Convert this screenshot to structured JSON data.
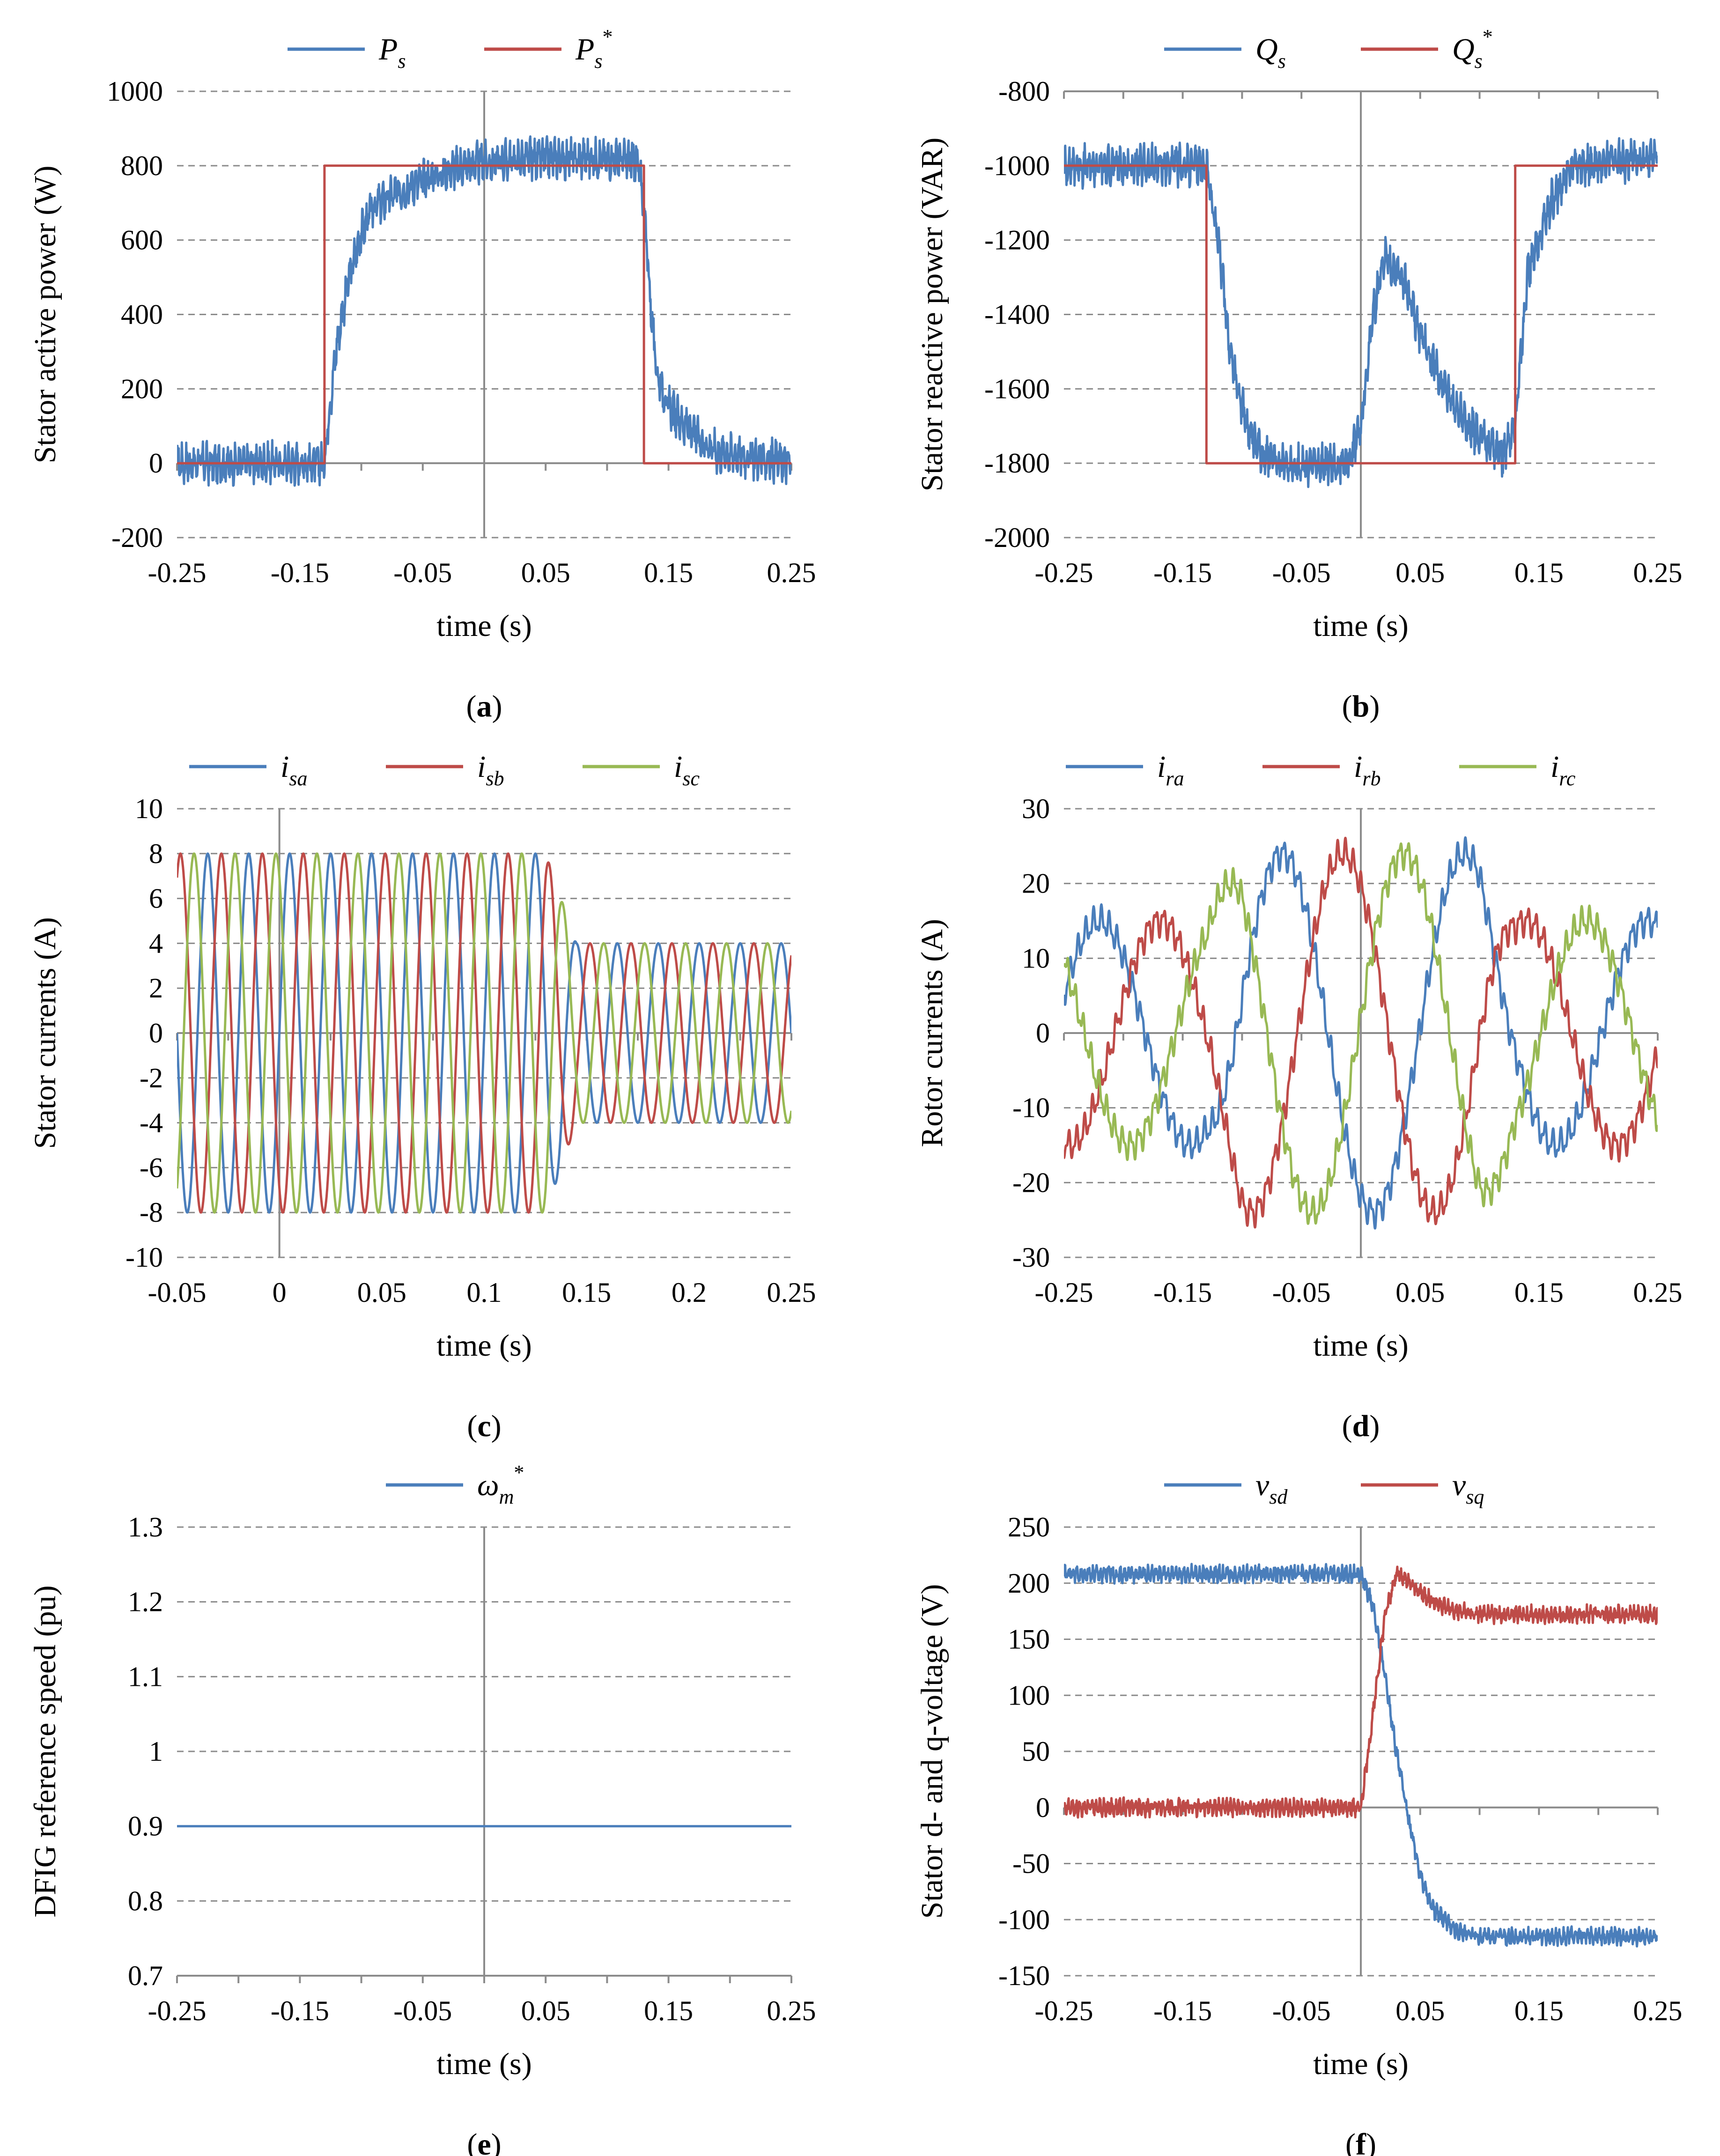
{
  "chart_data": [
    {
      "id": "a",
      "type": "line",
      "caption": "a",
      "ylabel": "Stator active power (W)",
      "xlabel": "time (s)",
      "xlim": [
        -0.25,
        0.25
      ],
      "ylim": [
        -200,
        1000
      ],
      "xticks": [
        -0.25,
        -0.15,
        -0.05,
        0.05,
        0.15,
        0.25
      ],
      "xtick_labels": [
        "-0.25",
        "-0.15",
        "-0.05",
        "0.05",
        "0.15",
        "0.25"
      ],
      "yticks": [
        -200,
        0,
        200,
        400,
        600,
        800,
        1000
      ],
      "ytick_labels": [
        "-200",
        "0",
        "200",
        "400",
        "600",
        "800",
        "1000"
      ],
      "zero_axis_x": 0,
      "zero_axis_y": 0,
      "series": [
        {
          "name": "P",
          "sub": "s",
          "sup": "",
          "color": "#4a7ebb",
          "noisy": true,
          "noise": 55,
          "x": [
            -0.25,
            -0.13,
            -0.128,
            -0.12,
            -0.11,
            -0.1,
            -0.09,
            -0.07,
            -0.05,
            -0.03,
            0.0,
            0.05,
            0.1,
            0.125,
            0.13,
            0.135,
            0.14,
            0.15,
            0.17,
            0.19,
            0.25
          ],
          "y": [
            0,
            0,
            80,
            320,
            500,
            620,
            690,
            730,
            760,
            790,
            810,
            820,
            820,
            810,
            700,
            450,
            250,
            150,
            80,
            30,
            0
          ]
        },
        {
          "name": "P",
          "sub": "s",
          "sup": "*",
          "color": "#be4b48",
          "noisy": false,
          "x": [
            -0.25,
            -0.13,
            -0.13,
            0.13,
            0.13,
            0.25
          ],
          "y": [
            0,
            0,
            800,
            800,
            0,
            0
          ]
        }
      ]
    },
    {
      "id": "b",
      "type": "line",
      "caption": "b",
      "ylabel": "Stator reactive power (VAR)",
      "xlabel": "time (s)",
      "xlim": [
        -0.25,
        0.25
      ],
      "ylim": [
        -2000,
        -800
      ],
      "xticks": [
        -0.25,
        -0.15,
        -0.05,
        0.05,
        0.15,
        0.25
      ],
      "xtick_labels": [
        "-0.25",
        "-0.15",
        "-0.05",
        "0.05",
        "0.15",
        "0.25"
      ],
      "yticks": [
        -2000,
        -1800,
        -1600,
        -1400,
        -1200,
        -1000,
        -800
      ],
      "ytick_labels": [
        "-2000",
        "-1800",
        "-1600",
        "-1400",
        "-1200",
        "-1000",
        "-800"
      ],
      "zero_axis_x": 0,
      "zero_axis_y": -800,
      "series": [
        {
          "name": "Q",
          "sub": "s",
          "sup": "",
          "color": "#4a7ebb",
          "noisy": true,
          "noise": 55,
          "x": [
            -0.25,
            -0.13,
            -0.12,
            -0.11,
            -0.1,
            -0.09,
            -0.07,
            -0.04,
            -0.01,
            0.0,
            0.01,
            0.02,
            0.035,
            0.05,
            0.07,
            0.09,
            0.12,
            0.13,
            0.14,
            0.16,
            0.18,
            0.25
          ],
          "y": [
            -1000,
            -1000,
            -1200,
            -1500,
            -1650,
            -1750,
            -1800,
            -1810,
            -1800,
            -1700,
            -1400,
            -1250,
            -1300,
            -1450,
            -1600,
            -1700,
            -1780,
            -1700,
            -1300,
            -1100,
            -1000,
            -980
          ]
        },
        {
          "name": "Q",
          "sub": "s",
          "sup": "*",
          "color": "#be4b48",
          "noisy": false,
          "x": [
            -0.25,
            -0.13,
            -0.13,
            0.13,
            0.13,
            0.25
          ],
          "y": [
            -1000,
            -1000,
            -1800,
            -1800,
            -1000,
            -1000
          ]
        }
      ]
    },
    {
      "id": "c",
      "type": "line",
      "caption": "c",
      "ylabel": "Stator currents (A)",
      "xlabel": "time (s)",
      "xlim": [
        -0.05,
        0.25
      ],
      "ylim": [
        -10,
        10
      ],
      "xticks": [
        -0.05,
        0,
        0.05,
        0.1,
        0.15,
        0.2,
        0.25
      ],
      "xtick_labels": [
        "-0.05",
        "0",
        "0.05",
        "0.1",
        "0.15",
        "0.2",
        "0.25"
      ],
      "yticks": [
        -10,
        -8,
        -6,
        -4,
        -2,
        0,
        2,
        4,
        6,
        8,
        10
      ],
      "ytick_labels": [
        "-10",
        "-8",
        "-6",
        "-4",
        "-2",
        "0",
        "2",
        "4",
        "6",
        "8",
        "10"
      ],
      "zero_axis_x": 0,
      "zero_axis_y": 0,
      "waveform": {
        "kind": "three_phase",
        "frequency_hz": 50,
        "amplitude_envelope": {
          "t": [
            -0.05,
            0.13,
            0.145,
            0.25
          ],
          "a": [
            8,
            8,
            4,
            4
          ]
        }
      },
      "series": [
        {
          "name": "i",
          "sub": "sa",
          "sup": "",
          "color": "#4a7ebb",
          "phase_deg": 0
        },
        {
          "name": "i",
          "sub": "sb",
          "sup": "",
          "color": "#be4b48",
          "phase_deg": -120
        },
        {
          "name": "i",
          "sub": "sc",
          "sup": "",
          "color": "#98b954",
          "phase_deg": 120
        }
      ]
    },
    {
      "id": "d",
      "type": "line",
      "caption": "d",
      "ylabel": "Rotor currents (A)",
      "xlabel": "time (s)",
      "xlim": [
        -0.25,
        0.25
      ],
      "ylim": [
        -30,
        30
      ],
      "xticks": [
        -0.25,
        -0.15,
        -0.05,
        0.05,
        0.15,
        0.25
      ],
      "xtick_labels": [
        "-0.25",
        "-0.15",
        "-0.05",
        "0.05",
        "0.15",
        "0.25"
      ],
      "yticks": [
        -30,
        -20,
        -10,
        0,
        10,
        20,
        30
      ],
      "ytick_labels": [
        "-30",
        "-20",
        "-10",
        "0",
        "10",
        "20",
        "30"
      ],
      "zero_axis_x": 0,
      "zero_axis_y": 0,
      "waveform": {
        "kind": "three_phase",
        "frequency_hz": 6.5,
        "noise": 1.5,
        "amplitude_envelope": {
          "t": [
            -0.25,
            -0.13,
            -0.1,
            0.1,
            0.13,
            0.25
          ],
          "a": [
            15,
            15,
            24,
            24,
            15,
            15
          ]
        }
      },
      "series": [
        {
          "name": "i",
          "sub": "ra",
          "sup": "",
          "color": "#4a7ebb",
          "phase_deg": -115
        },
        {
          "name": "i",
          "sub": "rb",
          "sup": "",
          "color": "#be4b48",
          "phase_deg": 125
        },
        {
          "name": "i",
          "sub": "rc",
          "sup": "",
          "color": "#98b954",
          "phase_deg": 5
        }
      ]
    },
    {
      "id": "e",
      "type": "line",
      "caption": "e",
      "ylabel": "DFIG reference speed (pu)",
      "xlabel": "time (s)",
      "xlim": [
        -0.25,
        0.25
      ],
      "ylim": [
        0.7,
        1.3
      ],
      "xticks": [
        -0.25,
        -0.15,
        -0.05,
        0.05,
        0.15,
        0.25
      ],
      "xtick_labels": [
        "-0.25",
        "-0.15",
        "-0.05",
        "0.05",
        "0.15",
        "0.25"
      ],
      "yticks": [
        0.7,
        0.8,
        0.9,
        1.0,
        1.1,
        1.2,
        1.3
      ],
      "ytick_labels": [
        "0.7",
        "0.8",
        "0.9",
        "1",
        "1.1",
        "1.2",
        "1.3"
      ],
      "zero_axis_x": 0,
      "zero_axis_y": 0.7,
      "series": [
        {
          "name": "ω",
          "sub": "m",
          "sup": "*",
          "color": "#4a7ebb",
          "noisy": false,
          "x": [
            -0.25,
            0.25
          ],
          "y": [
            0.9,
            0.9
          ]
        }
      ]
    },
    {
      "id": "f",
      "type": "line",
      "caption": "f",
      "ylabel": "Stator d- and q-voltage (V)",
      "xlabel": "time (s)",
      "xlim": [
        -0.25,
        0.25
      ],
      "ylim": [
        -150,
        250
      ],
      "xticks": [
        -0.25,
        -0.15,
        -0.05,
        0.05,
        0.15,
        0.25
      ],
      "xtick_labels": [
        "-0.25",
        "-0.15",
        "-0.05",
        "0.05",
        "0.15",
        "0.25"
      ],
      "yticks": [
        -150,
        -100,
        -50,
        0,
        50,
        100,
        150,
        200,
        250
      ],
      "ytick_labels": [
        "-150",
        "-100",
        "-50",
        "0",
        "50",
        "100",
        "150",
        "200",
        "250"
      ],
      "zero_axis_x": 0,
      "zero_axis_y": 0,
      "series": [
        {
          "name": "v",
          "sub": "sd",
          "sup": "",
          "color": "#4a7ebb",
          "noisy": true,
          "noise": 8,
          "x": [
            -0.25,
            0.0,
            0.01,
            0.02,
            0.03,
            0.04,
            0.05,
            0.06,
            0.08,
            0.1,
            0.25
          ],
          "y": [
            208,
            208,
            180,
            120,
            50,
            -10,
            -60,
            -90,
            -110,
            -115,
            -115
          ]
        },
        {
          "name": "v",
          "sub": "sq",
          "sup": "",
          "color": "#be4b48",
          "noisy": true,
          "noise": 8,
          "x": [
            -0.25,
            0.0,
            0.01,
            0.02,
            0.03,
            0.04,
            0.06,
            0.08,
            0.1,
            0.25
          ],
          "y": [
            0,
            0,
            80,
            170,
            210,
            200,
            185,
            175,
            172,
            172
          ]
        }
      ]
    }
  ]
}
